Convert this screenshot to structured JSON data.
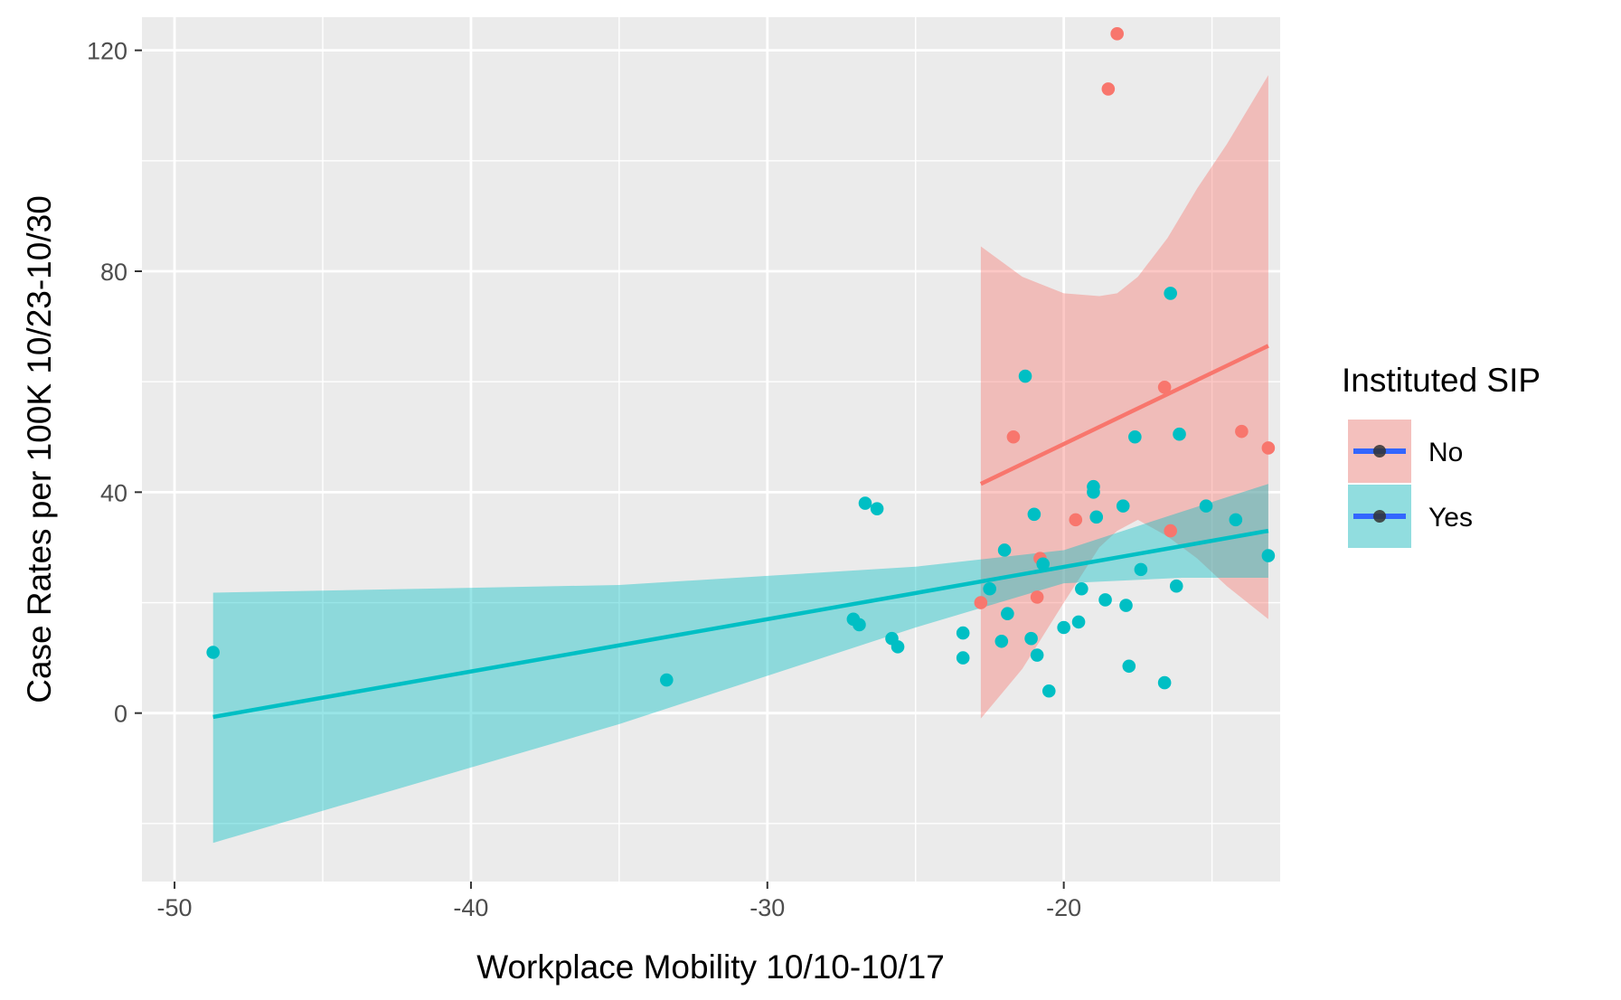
{
  "chart_data": {
    "type": "scatter",
    "title": "",
    "xlabel": "Workplace Mobility 10/10-10/17",
    "ylabel": "Case Rates per 100K 10/23-10/30",
    "xlim": [
      -51.1,
      -12.7
    ],
    "ylim": [
      -30.5,
      126
    ],
    "x_ticks": [
      -50,
      -40,
      -30,
      -20
    ],
    "x_minor_ticks": [
      -45,
      -35,
      -25,
      -15
    ],
    "y_ticks": [
      0,
      40,
      80,
      120
    ],
    "y_minor_ticks": [
      -20,
      20,
      60,
      100
    ],
    "grid": true,
    "legend": {
      "title": "Instituted SIP",
      "placement": "right",
      "entries": [
        "No",
        "Yes"
      ]
    },
    "series": [
      {
        "name": "No",
        "color": "#F8766D",
        "points": [
          {
            "x": -18.2,
            "y": 123
          },
          {
            "x": -18.5,
            "y": 113
          },
          {
            "x": -16.6,
            "y": 59
          },
          {
            "x": -21.7,
            "y": 50
          },
          {
            "x": -14.0,
            "y": 51
          },
          {
            "x": -13.1,
            "y": 48
          },
          {
            "x": -19.6,
            "y": 35
          },
          {
            "x": -20.9,
            "y": 21
          },
          {
            "x": -16.4,
            "y": 33
          },
          {
            "x": -20.8,
            "y": 28
          },
          {
            "x": -22.8,
            "y": 20
          }
        ],
        "fit": {
          "x": [
            -22.8,
            -13.1
          ],
          "y": [
            41.5,
            66.5
          ]
        },
        "ci": {
          "x": [
            -22.8,
            -21.4,
            -20.0,
            -18.8,
            -18.2,
            -17.5,
            -16.5,
            -15.5,
            -14.5,
            -13.1
          ],
          "lower": [
            -1,
            8,
            20,
            30,
            33,
            35,
            32,
            28,
            23,
            17
          ],
          "upper": [
            84.5,
            79,
            76,
            75.5,
            76,
            79,
            86,
            95,
            103,
            115.5
          ]
        }
      },
      {
        "name": "Yes",
        "color": "#00BFC4",
        "points": [
          {
            "x": -48.7,
            "y": 11
          },
          {
            "x": -33.4,
            "y": 6
          },
          {
            "x": -26.7,
            "y": 38
          },
          {
            "x": -26.3,
            "y": 37
          },
          {
            "x": -27.1,
            "y": 17
          },
          {
            "x": -26.9,
            "y": 16
          },
          {
            "x": -25.8,
            "y": 13.5
          },
          {
            "x": -25.6,
            "y": 12
          },
          {
            "x": -23.4,
            "y": 14.5
          },
          {
            "x": -23.4,
            "y": 10
          },
          {
            "x": -22.5,
            "y": 22.5
          },
          {
            "x": -22.1,
            "y": 13
          },
          {
            "x": -21.9,
            "y": 18
          },
          {
            "x": -22.0,
            "y": 29.5
          },
          {
            "x": -21.3,
            "y": 61
          },
          {
            "x": -21.0,
            "y": 36
          },
          {
            "x": -21.1,
            "y": 13.5
          },
          {
            "x": -20.9,
            "y": 10.5
          },
          {
            "x": -20.7,
            "y": 27
          },
          {
            "x": -20.5,
            "y": 4
          },
          {
            "x": -20.0,
            "y": 15.5
          },
          {
            "x": -19.4,
            "y": 22.5
          },
          {
            "x": -19.5,
            "y": 16.5
          },
          {
            "x": -19.0,
            "y": 41
          },
          {
            "x": -19.0,
            "y": 40
          },
          {
            "x": -18.9,
            "y": 35.5
          },
          {
            "x": -18.6,
            "y": 20.5
          },
          {
            "x": -18.0,
            "y": 37.5
          },
          {
            "x": -17.9,
            "y": 19.5
          },
          {
            "x": -17.8,
            "y": 8.5
          },
          {
            "x": -17.6,
            "y": 50
          },
          {
            "x": -17.4,
            "y": 26
          },
          {
            "x": -16.6,
            "y": 5.5
          },
          {
            "x": -16.4,
            "y": 76
          },
          {
            "x": -16.2,
            "y": 23
          },
          {
            "x": -16.1,
            "y": 50.5
          },
          {
            "x": -15.2,
            "y": 37.5
          },
          {
            "x": -14.2,
            "y": 35
          },
          {
            "x": -13.1,
            "y": 28.5
          }
        ],
        "fit": {
          "x": [
            -48.7,
            -13.1
          ],
          "y": [
            -0.7,
            33
          ]
        },
        "ci": {
          "x": [
            -48.7,
            -35,
            -25,
            -20,
            -16,
            -13.1
          ],
          "lower": [
            -23.5,
            -2,
            15.5,
            23.5,
            24.5,
            24.5
          ],
          "upper": [
            21.8,
            23.2,
            26.5,
            29.5,
            36.5,
            41.5
          ]
        }
      }
    ]
  }
}
